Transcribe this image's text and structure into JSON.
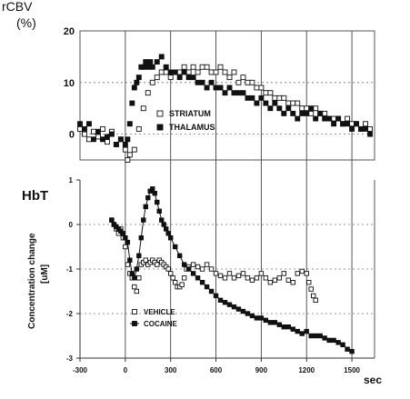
{
  "chart_data": [
    {
      "type": "scatter",
      "panel": "rCBV",
      "ylabel_line1": "rCBV",
      "ylabel_line2": "(%)",
      "xlim": [
        -300,
        1650
      ],
      "ylim": [
        -5,
        20
      ],
      "yticks": [
        0,
        10,
        20
      ],
      "grid": true,
      "legend_placement": "center",
      "series": [
        {
          "name": "STRIATUM",
          "marker": "open-square",
          "x": [
            -300,
            -270,
            -240,
            -210,
            -180,
            -150,
            -120,
            -90,
            -60,
            -30,
            0,
            15,
            30,
            60,
            90,
            120,
            150,
            180,
            210,
            240,
            270,
            300,
            330,
            360,
            390,
            420,
            450,
            480,
            510,
            540,
            570,
            600,
            630,
            660,
            690,
            720,
            750,
            780,
            810,
            840,
            870,
            900,
            930,
            960,
            990,
            1020,
            1050,
            1080,
            1110,
            1140,
            1170,
            1200,
            1230,
            1260,
            1290,
            1320,
            1350,
            1380,
            1410,
            1440,
            1470,
            1500,
            1530,
            1560,
            1590,
            1620
          ],
          "y": [
            1,
            0,
            -1,
            0.5,
            -0.5,
            1,
            -1.5,
            0.5,
            -2,
            -1,
            -3,
            -5,
            -4,
            -3,
            1,
            5,
            8,
            10,
            11,
            12,
            12,
            11,
            12,
            12,
            13,
            12,
            13,
            12,
            13,
            13,
            12,
            12,
            13,
            12,
            11,
            12,
            10,
            11,
            10,
            10,
            9,
            9,
            8,
            8,
            7,
            7,
            7,
            6,
            6,
            6,
            5,
            5,
            4,
            5,
            4,
            4,
            3,
            3,
            3,
            2,
            3,
            2,
            2,
            1,
            2,
            1
          ]
        },
        {
          "name": "THALAMUS",
          "marker": "filled-square",
          "x": [
            -300,
            -270,
            -240,
            -210,
            -180,
            -150,
            -120,
            -90,
            -60,
            -30,
            0,
            15,
            30,
            45,
            60,
            75,
            90,
            105,
            120,
            135,
            150,
            165,
            180,
            210,
            240,
            270,
            300,
            330,
            360,
            390,
            420,
            450,
            480,
            510,
            540,
            570,
            600,
            630,
            660,
            690,
            720,
            750,
            780,
            810,
            840,
            870,
            900,
            930,
            960,
            990,
            1020,
            1050,
            1080,
            1110,
            1140,
            1170,
            1200,
            1230,
            1260,
            1290,
            1320,
            1350,
            1380,
            1410,
            1440,
            1470,
            1500,
            1530,
            1560,
            1590,
            1620
          ],
          "y": [
            2,
            1,
            2,
            -1,
            0.5,
            -1,
            -0.5,
            0,
            -2,
            -1,
            -2,
            -1,
            2,
            6,
            9,
            10,
            11,
            13,
            13,
            14,
            13,
            14,
            13,
            14,
            15,
            13,
            12,
            12,
            11,
            12,
            11,
            11,
            10,
            10,
            9,
            10,
            9,
            9,
            8,
            9,
            8,
            8,
            8,
            7,
            7,
            6,
            7,
            6,
            5,
            6,
            5,
            4,
            5,
            4,
            3,
            4,
            4,
            5,
            3,
            4,
            3,
            3,
            2,
            3,
            2,
            2,
            1,
            2,
            1,
            1,
            0
          ]
        }
      ]
    },
    {
      "type": "scatter",
      "panel": "HbT",
      "title": "HbT",
      "ylabel": "Concentration change",
      "ylabel_unit": "[uM]",
      "xlabel": "sec",
      "xlim": [
        -300,
        1650
      ],
      "xticks": [
        -300,
        0,
        300,
        600,
        900,
        1200,
        1500
      ],
      "ylim": [
        -3,
        1
      ],
      "yticks": [
        -3,
        -2,
        -1,
        0,
        1
      ],
      "grid": true,
      "legend_placement": "bottom-left",
      "series": [
        {
          "name": "VEHICLE",
          "marker": "open-square",
          "x": [
            -90,
            -75,
            -60,
            -45,
            -30,
            -15,
            0,
            15,
            30,
            45,
            60,
            75,
            90,
            105,
            120,
            135,
            150,
            165,
            180,
            195,
            210,
            225,
            240,
            255,
            270,
            285,
            300,
            315,
            330,
            345,
            360,
            375,
            390,
            405,
            420,
            450,
            480,
            510,
            540,
            570,
            600,
            630,
            660,
            690,
            720,
            750,
            780,
            810,
            840,
            870,
            900,
            930,
            960,
            990,
            1020,
            1050,
            1080,
            1110,
            1140,
            1170,
            1200,
            1215,
            1230,
            1245,
            1260
          ],
          "y": [
            0.1,
            0,
            -0.1,
            -0.2,
            -0.1,
            -0.3,
            -0.5,
            -0.9,
            -1.1,
            -1.2,
            -1.4,
            -1.5,
            -1.2,
            -0.9,
            -0.85,
            -0.8,
            -0.9,
            -0.85,
            -0.8,
            -0.85,
            -0.9,
            -0.8,
            -0.85,
            -0.9,
            -0.95,
            -1.0,
            -1.1,
            -1.2,
            -1.3,
            -1.4,
            -1.4,
            -1.35,
            -1.2,
            -1.0,
            -0.95,
            -0.9,
            -0.95,
            -1.0,
            -0.9,
            -1.0,
            -1.1,
            -1.15,
            -1.2,
            -1.1,
            -1.2,
            -1.15,
            -1.1,
            -1.2,
            -1.25,
            -1.2,
            -1.1,
            -1.2,
            -1.3,
            -1.25,
            -1.2,
            -1.1,
            -1.25,
            -1.3,
            -1.1,
            -1.05,
            -1.1,
            -1.3,
            -1.45,
            -1.6,
            -1.7
          ]
        },
        {
          "name": "COCAINE",
          "marker": "filled-square-line",
          "x": [
            -90,
            -75,
            -60,
            -45,
            -30,
            -15,
            0,
            15,
            30,
            45,
            60,
            75,
            90,
            105,
            120,
            135,
            150,
            165,
            180,
            195,
            210,
            225,
            240,
            255,
            270,
            285,
            300,
            330,
            360,
            390,
            420,
            450,
            480,
            510,
            540,
            570,
            600,
            630,
            660,
            690,
            720,
            750,
            780,
            810,
            840,
            870,
            900,
            930,
            960,
            990,
            1020,
            1050,
            1080,
            1110,
            1140,
            1170,
            1200,
            1230,
            1260,
            1290,
            1320,
            1350,
            1380,
            1410,
            1440,
            1470,
            1500
          ],
          "y": [
            0.1,
            0,
            -0.05,
            -0.1,
            -0.15,
            -0.2,
            -0.3,
            -0.4,
            -0.8,
            -1.1,
            -1.2,
            -1.0,
            -0.7,
            -0.3,
            0.1,
            0.4,
            0.6,
            0.75,
            0.8,
            0.7,
            0.5,
            0.3,
            0.1,
            0,
            -0.1,
            -0.2,
            -0.3,
            -0.5,
            -0.7,
            -0.9,
            -1.0,
            -1.1,
            -1.2,
            -1.3,
            -1.4,
            -1.5,
            -1.6,
            -1.7,
            -1.75,
            -1.8,
            -1.85,
            -1.9,
            -1.95,
            -2.0,
            -2.05,
            -2.1,
            -2.1,
            -2.15,
            -2.2,
            -2.2,
            -2.25,
            -2.3,
            -2.3,
            -2.35,
            -2.4,
            -2.45,
            -2.4,
            -2.5,
            -2.5,
            -2.5,
            -2.55,
            -2.6,
            -2.6,
            -2.65,
            -2.7,
            -2.8,
            -2.85
          ]
        }
      ]
    }
  ]
}
